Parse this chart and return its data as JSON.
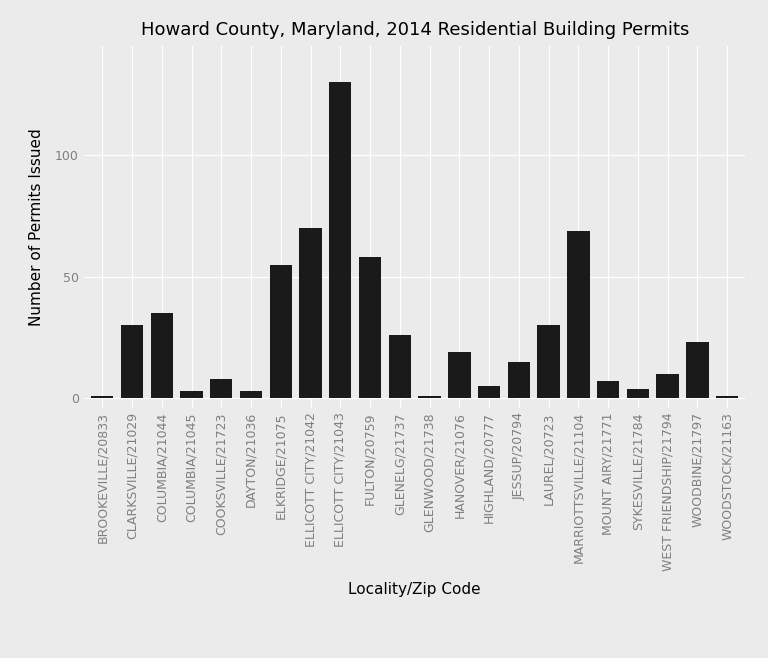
{
  "title": "Howard County, Maryland, 2014 Residential Building Permits",
  "xlabel": "Locality/Zip Code",
  "ylabel": "Number of Permits Issued",
  "background_color": "#EBEBEB",
  "bar_color": "#1a1a1a",
  "categories": [
    "BROOKEVILLE/20833",
    "CLARKSVILLE/21029",
    "COLUMBIA/21044",
    "COLUMBIA/21045",
    "COOKSVILLE/21723",
    "DAYTON/21036",
    "ELKRIDGE/21075",
    "ELLICOTT CITY/21042",
    "ELLICOTT CITY/21043",
    "FULTON/20759",
    "GLENELG/21737",
    "GLENWOOD/21738",
    "HANOVER/21076",
    "HIGHLAND/20777",
    "JESSUP/20794",
    "LAUREL/20723",
    "MARRIOTTSVILLE/21104",
    "MOUNT AIRY/21771",
    "SYKESVILLE/21784",
    "WEST FRIENDSHIP/21794",
    "WOODBINE/21797",
    "WOODSTOCK/21163"
  ],
  "values": [
    1,
    30,
    35,
    3,
    8,
    3,
    55,
    70,
    130,
    58,
    26,
    1,
    19,
    5,
    15,
    30,
    69,
    7,
    4,
    10,
    23,
    1
  ],
  "yticks": [
    0,
    50,
    100
  ],
  "ylim": [
    -4,
    145
  ],
  "grid_color": "white",
  "tick_label_color": "#7F7F7F",
  "title_fontsize": 13,
  "axis_label_fontsize": 11,
  "tick_fontsize": 9
}
